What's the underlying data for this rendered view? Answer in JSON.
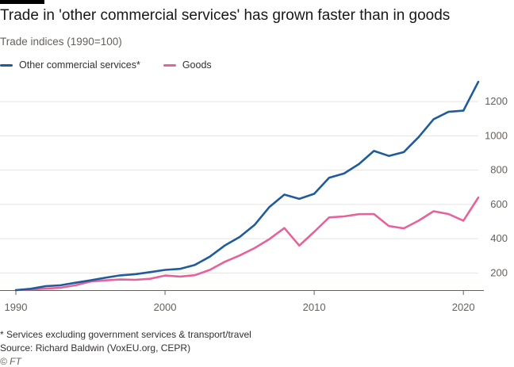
{
  "header": {
    "title": "Trade in 'other commercial services' has grown faster than in goods",
    "subtitle": "Trade indices (1990=100)"
  },
  "footer": {
    "note": "* Services excluding government services & transport/travel",
    "source": "Source: Richard Baldwin (VoxEU.org, CEPR)",
    "credit": "© FT"
  },
  "colors": {
    "services": "#1f5c99",
    "goods": "#e5629a",
    "grid": "#e6e3e0",
    "axis": "#66605c"
  },
  "chart_data": {
    "type": "line",
    "title": "Trade in 'other commercial services' has grown faster than in goods",
    "subtitle": "Trade indices (1990=100)",
    "xlim": [
      1990,
      2021
    ],
    "ylim": [
      100,
      1330
    ],
    "x_ticks": [
      1990,
      2000,
      2010,
      2020
    ],
    "x_tick_labels": [
      "1990",
      "2000",
      "2010",
      "2020"
    ],
    "y_ticks": [
      200,
      400,
      600,
      800,
      1000,
      1200
    ],
    "y_tick_labels": [
      "200",
      "400",
      "600",
      "800",
      "1000",
      "1200"
    ],
    "grid": "horizontal",
    "legend_position": "top-left",
    "x": [
      1990,
      1991,
      1992,
      1993,
      1994,
      1995,
      1996,
      1997,
      1998,
      1999,
      2000,
      2001,
      2002,
      2003,
      2004,
      2005,
      2006,
      2007,
      2008,
      2009,
      2010,
      2011,
      2012,
      2013,
      2014,
      2015,
      2016,
      2017,
      2018,
      2019,
      2020,
      2021
    ],
    "series": [
      {
        "name": "Other commercial services*",
        "color": "#1f5c99",
        "values": [
          100,
          108,
          123,
          128,
          143,
          157,
          172,
          186,
          193,
          205,
          218,
          224,
          247,
          295,
          360,
          410,
          480,
          585,
          657,
          632,
          662,
          755,
          780,
          835,
          912,
          883,
          905,
          993,
          1097,
          1140,
          1147,
          1315
        ]
      },
      {
        "name": "Goods",
        "color": "#e5629a",
        "values": [
          100,
          104,
          109,
          114,
          128,
          150,
          157,
          162,
          160,
          166,
          185,
          179,
          187,
          218,
          265,
          302,
          345,
          398,
          462,
          360,
          440,
          524,
          530,
          543,
          544,
          474,
          460,
          505,
          560,
          544,
          505,
          640
        ]
      }
    ]
  }
}
